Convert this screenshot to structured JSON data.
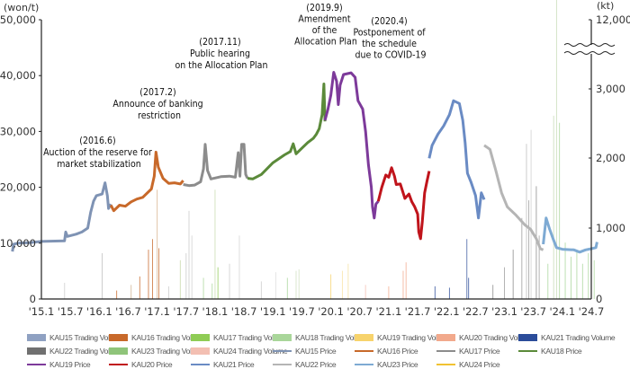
{
  "chart_data": {
    "type": "line",
    "title": "",
    "left_axis": {
      "unit_label": "(won/t)",
      "ticks": [
        "50,000",
        "40,000",
        "30,000",
        "20,000",
        "10,000",
        "0"
      ],
      "range": [
        0,
        50000
      ]
    },
    "right_axis": {
      "unit_label": "(kt)",
      "ticks": [
        "12,000",
        "3,000",
        "2,000",
        "1,000",
        "0"
      ],
      "range": [
        0,
        4000
      ],
      "break_between": [
        3000,
        12000
      ]
    },
    "x_ticks": [
      "'15.1",
      "'15.7",
      "'16.1",
      "'16.7",
      "'17.1",
      "'17.7",
      "'18.1",
      "'18.7",
      "'19.1",
      "'19.7",
      "'20.1",
      "'20.7",
      "'21.1",
      "'21.7",
      "'22.1",
      "'22.7",
      "'23.1",
      "'23.7",
      "'24.1",
      "'24.7"
    ],
    "annotations": [
      {
        "lines": [
          "(2016.6)",
          "Auction of the reserve for",
          "market stabilization"
        ]
      },
      {
        "lines": [
          "(2017.2)",
          "Announce of banking",
          "restriction"
        ]
      },
      {
        "lines": [
          "(2017.11)",
          "Public hearing",
          "on the Allocation Plan"
        ]
      },
      {
        "lines": [
          "(2019.9)",
          "Amendment",
          "of the",
          "Allocation Plan"
        ]
      },
      {
        "lines": [
          "(2020.4)",
          "Postponement of",
          "the schedule",
          "due to COVID-19"
        ]
      }
    ],
    "price_series": [
      {
        "name": "KAU15 Price",
        "color": "#7f93b4",
        "points": [
          [
            2015.0,
            8500
          ],
          [
            2015.02,
            9800
          ],
          [
            2015.1,
            10000
          ],
          [
            2015.3,
            10100
          ],
          [
            2015.5,
            10300
          ],
          [
            2015.9,
            10400
          ],
          [
            2015.92,
            12000
          ],
          [
            2015.95,
            11200
          ],
          [
            2016.1,
            11600
          ],
          [
            2016.2,
            12000
          ],
          [
            2016.3,
            12700
          ],
          [
            2016.35,
            15500
          ],
          [
            2016.4,
            17500
          ],
          [
            2016.45,
            18500
          ],
          [
            2016.55,
            18800
          ],
          [
            2016.6,
            20800
          ],
          [
            2016.64,
            18500
          ],
          [
            2016.66,
            16200
          ],
          [
            2016.7,
            17000
          ]
        ]
      },
      {
        "name": "KAU16 Price",
        "color": "#c8692a",
        "points": [
          [
            2016.7,
            16800
          ],
          [
            2016.75,
            15800
          ],
          [
            2016.85,
            16800
          ],
          [
            2016.95,
            16600
          ],
          [
            2017.05,
            17400
          ],
          [
            2017.15,
            17900
          ],
          [
            2017.25,
            18200
          ],
          [
            2017.4,
            19700
          ],
          [
            2017.45,
            22000
          ],
          [
            2017.48,
            26300
          ],
          [
            2017.52,
            23600
          ],
          [
            2017.6,
            21600
          ],
          [
            2017.7,
            20700
          ],
          [
            2017.8,
            20800
          ],
          [
            2017.9,
            20600
          ],
          [
            2017.95,
            21200
          ]
        ]
      },
      {
        "name": "KAU17 Price",
        "color": "#8c8c8c",
        "points": [
          [
            2017.95,
            20500
          ],
          [
            2018.05,
            20300
          ],
          [
            2018.15,
            20400
          ],
          [
            2018.25,
            21000
          ],
          [
            2018.3,
            23300
          ],
          [
            2018.33,
            27700
          ],
          [
            2018.37,
            23000
          ],
          [
            2018.43,
            21500
          ],
          [
            2018.6,
            21900
          ],
          [
            2018.75,
            22000
          ],
          [
            2018.85,
            21800
          ],
          [
            2018.9,
            26200
          ],
          [
            2018.93,
            22000
          ],
          [
            2018.96,
            27700
          ],
          [
            2019.0,
            27700
          ],
          [
            2019.03,
            22300
          ],
          [
            2019.06,
            21600
          ]
        ]
      },
      {
        "name": "KAU18 Price",
        "color": "#5b8a3a",
        "points": [
          [
            2019.06,
            21600
          ],
          [
            2019.15,
            21500
          ],
          [
            2019.3,
            22300
          ],
          [
            2019.5,
            24400
          ],
          [
            2019.7,
            25800
          ],
          [
            2019.8,
            26400
          ],
          [
            2019.85,
            27800
          ],
          [
            2019.9,
            26000
          ],
          [
            2020.0,
            27000
          ],
          [
            2020.1,
            28000
          ],
          [
            2020.2,
            28800
          ],
          [
            2020.25,
            29500
          ],
          [
            2020.3,
            30500
          ],
          [
            2020.35,
            33000
          ],
          [
            2020.38,
            38500
          ],
          [
            2020.4,
            31800
          ]
        ]
      },
      {
        "name": "KAU19 Price",
        "color": "#7d3a9a",
        "points": [
          [
            2020.4,
            32000
          ],
          [
            2020.45,
            34000
          ],
          [
            2020.5,
            36500
          ],
          [
            2020.55,
            40600
          ],
          [
            2020.6,
            39000
          ],
          [
            2020.63,
            34800
          ],
          [
            2020.66,
            38300
          ],
          [
            2020.72,
            40200
          ],
          [
            2020.85,
            40500
          ],
          [
            2020.92,
            39700
          ],
          [
            2020.97,
            35500
          ],
          [
            2021.05,
            34000
          ],
          [
            2021.1,
            30000
          ],
          [
            2021.15,
            24000
          ],
          [
            2021.2,
            20000
          ],
          [
            2021.22,
            16500
          ],
          [
            2021.25,
            14500
          ],
          [
            2021.28,
            17000
          ],
          [
            2021.32,
            17500
          ]
        ]
      },
      {
        "name": "KAU20 Price",
        "color": "#c0141b",
        "points": [
          [
            2021.32,
            17500
          ],
          [
            2021.38,
            20000
          ],
          [
            2021.45,
            22200
          ],
          [
            2021.5,
            21800
          ],
          [
            2021.55,
            23500
          ],
          [
            2021.6,
            22000
          ],
          [
            2021.63,
            20500
          ],
          [
            2021.7,
            20600
          ],
          [
            2021.78,
            18000
          ],
          [
            2021.85,
            18800
          ],
          [
            2021.9,
            17400
          ],
          [
            2021.95,
            16500
          ],
          [
            2022.0,
            15200
          ],
          [
            2022.02,
            12000
          ],
          [
            2022.05,
            10800
          ],
          [
            2022.08,
            13800
          ],
          [
            2022.12,
            19000
          ],
          [
            2022.16,
            21000
          ],
          [
            2022.2,
            22900
          ]
        ]
      },
      {
        "name": "KAU21 Price",
        "color": "#6a8bc4",
        "points": [
          [
            2022.2,
            25200
          ],
          [
            2022.25,
            27500
          ],
          [
            2022.35,
            29500
          ],
          [
            2022.45,
            31000
          ],
          [
            2022.55,
            33000
          ],
          [
            2022.62,
            35500
          ],
          [
            2022.72,
            35000
          ],
          [
            2022.78,
            32000
          ],
          [
            2022.82,
            28000
          ],
          [
            2022.86,
            22500
          ],
          [
            2022.92,
            21000
          ],
          [
            2023.0,
            18500
          ],
          [
            2023.05,
            14500
          ],
          [
            2023.1,
            19000
          ],
          [
            2023.15,
            17800
          ]
        ]
      },
      {
        "name": "KAU22 Price",
        "color": "#b5b5b5",
        "points": [
          [
            2023.15,
            27500
          ],
          [
            2023.25,
            26800
          ],
          [
            2023.35,
            23000
          ],
          [
            2023.45,
            19000
          ],
          [
            2023.55,
            16500
          ],
          [
            2023.7,
            15000
          ],
          [
            2023.85,
            13300
          ],
          [
            2023.95,
            12500
          ],
          [
            2024.05,
            10800
          ],
          [
            2024.12,
            9000
          ],
          [
            2024.17,
            8800
          ]
        ]
      },
      {
        "name": "KAU23 Price",
        "color": "#7eaad3",
        "points": [
          [
            2024.17,
            9800
          ],
          [
            2024.22,
            14500
          ],
          [
            2024.28,
            12500
          ],
          [
            2024.35,
            10500
          ],
          [
            2024.4,
            9200
          ],
          [
            2024.5,
            8900
          ],
          [
            2024.7,
            8800
          ],
          [
            2024.8,
            8400
          ],
          [
            2024.9,
            8800
          ],
          [
            2025.0,
            9000
          ],
          [
            2025.08,
            9200
          ],
          [
            2025.1,
            10200
          ]
        ]
      }
    ],
    "volume_series": [
      {
        "name": "KAU15 Trading Volume",
        "color": "#8fa1c2"
      },
      {
        "name": "KAU16 Trading Volume",
        "color": "#c8692a"
      },
      {
        "name": "KAU17 Trading Volume",
        "color": "#8fcc55"
      },
      {
        "name": "KAU18 Trading Volume",
        "color": "#a9d69a"
      },
      {
        "name": "KAU19 Trading Volume",
        "color": "#f7d36c"
      },
      {
        "name": "KAU20 Trading Volume",
        "color": "#f2a98c"
      },
      {
        "name": "KAU21 Trading Volume",
        "color": "#2b4c9a"
      },
      {
        "name": "KAU22 Trading Volume",
        "color": "#707070"
      },
      {
        "name": "KAU23 Trading Volume",
        "color": "#8fc47a"
      },
      {
        "name": "KAU24 Trading Volume",
        "color": "#f3bfb2"
      }
    ],
    "volume_bars": [
      [
        2015.9,
        230,
        "#cccccc"
      ],
      [
        2016.55,
        650,
        "#bbbbbb"
      ],
      [
        2016.8,
        120,
        "#c8692a"
      ],
      [
        2017.05,
        200,
        "#d0b090"
      ],
      [
        2017.2,
        320,
        "#c8692a"
      ],
      [
        2017.35,
        700,
        "#c8692a"
      ],
      [
        2017.42,
        850,
        "#c8692a"
      ],
      [
        2017.5,
        1550,
        "#d7b08a"
      ],
      [
        2017.53,
        720,
        "#c8692a"
      ],
      [
        2017.7,
        180,
        "#ccc"
      ],
      [
        2017.9,
        550,
        "#c8d9a8"
      ],
      [
        2018.0,
        650,
        "#c8c8c8"
      ],
      [
        2018.05,
        1250,
        "#c8c8c8"
      ],
      [
        2018.1,
        900,
        "#cfcfcf"
      ],
      [
        2018.3,
        300,
        "#a9d69a"
      ],
      [
        2018.45,
        220,
        "#a9d69a"
      ],
      [
        2018.5,
        1550,
        "#c9dcae"
      ],
      [
        2018.55,
        450,
        "#8fcc55"
      ],
      [
        2018.75,
        500,
        "#cccccc"
      ],
      [
        2018.92,
        900,
        "#d6d6d6"
      ],
      [
        2019.3,
        250,
        "#cccccc"
      ],
      [
        2019.55,
        380,
        "#dddddd"
      ],
      [
        2019.75,
        300,
        "#a9d69a"
      ],
      [
        2019.9,
        400,
        "#cfe0c0"
      ],
      [
        2019.95,
        420,
        "#cfe0c0"
      ],
      [
        2020.5,
        350,
        "#f7d36c"
      ],
      [
        2020.7,
        400,
        "#f7e2a0"
      ],
      [
        2020.8,
        500,
        "#f7e2a0"
      ],
      [
        2021.1,
        200,
        "#f3bfb2"
      ],
      [
        2021.5,
        180,
        "#f2a98c"
      ],
      [
        2021.75,
        400,
        "#f2a98c"
      ],
      [
        2021.8,
        520,
        "#f2a98c"
      ],
      [
        2022.3,
        180,
        "#2b4c9a"
      ],
      [
        2022.55,
        160,
        "#2b4c9a"
      ],
      [
        2022.85,
        850,
        "#3d5aa0"
      ],
      [
        2022.88,
        300,
        "#2b4c9a"
      ],
      [
        2023.3,
        200,
        "#888"
      ],
      [
        2023.5,
        450,
        "#999"
      ],
      [
        2023.65,
        700,
        "#888"
      ],
      [
        2023.8,
        1150,
        "#999"
      ],
      [
        2023.88,
        2200,
        "#bbbbbb"
      ],
      [
        2023.92,
        1400,
        "#999"
      ],
      [
        2023.96,
        2400,
        "#cfcfcf"
      ],
      [
        2024.05,
        1600,
        "#888"
      ],
      [
        2024.1,
        900,
        "#999"
      ],
      [
        2024.25,
        500,
        "#a9d69a"
      ],
      [
        2024.35,
        2600,
        "#c5dbb5"
      ],
      [
        2024.4,
        5000,
        "#c5dbb5"
      ],
      [
        2024.45,
        2500,
        "#a9d69a"
      ],
      [
        2024.55,
        800,
        "#a9d69a"
      ],
      [
        2024.65,
        600,
        "#a9d69a"
      ],
      [
        2024.75,
        700,
        "#a9d69a"
      ],
      [
        2024.85,
        500,
        "#a9d69a"
      ],
      [
        2024.95,
        650,
        "#a9d69a"
      ],
      [
        2025.05,
        550,
        "#a9d69a"
      ]
    ]
  },
  "legend": {
    "rows": [
      [
        {
          "label": "KAU15 Trading Volume",
          "type": "box",
          "color": "#8fa1c2"
        },
        {
          "label": "KAU16 Trading Volume",
          "type": "box",
          "color": "#c8692a"
        },
        {
          "label": "KAU17 Trading Volume",
          "type": "box",
          "color": "#8fcc55"
        },
        {
          "label": "KAU18 Trading Volume",
          "type": "box",
          "color": "#a9d69a"
        },
        {
          "label": "KAU19 Trading Volume",
          "type": "box",
          "color": "#f7d36c"
        },
        {
          "label": "KAU20 Trading Volume",
          "type": "box",
          "color": "#f2a98c"
        },
        {
          "label": "KAU21 Trading Volume",
          "type": "box",
          "color": "#2b4c9a"
        }
      ],
      [
        {
          "label": "KAU22 Trading Volume",
          "type": "box",
          "color": "#707070"
        },
        {
          "label": "KAU23 Trading Volume",
          "type": "box",
          "color": "#8fc47a"
        },
        {
          "label": "KAU24 Trading Volume",
          "type": "box",
          "color": "#f3bfb2"
        },
        {
          "label": "KAU15 Price",
          "type": "line",
          "color": "#7f93b4"
        },
        {
          "label": "KAU16 Price",
          "type": "line",
          "color": "#c8692a"
        },
        {
          "label": "KAU17 Price",
          "type": "line",
          "color": "#8c8c8c"
        },
        {
          "label": "KAU18 Price",
          "type": "line",
          "color": "#5b8a3a"
        }
      ],
      [
        {
          "label": "KAU19 Price",
          "type": "line",
          "color": "#7d3a9a"
        },
        {
          "label": "KAU20 Price",
          "type": "line",
          "color": "#c0141b"
        },
        {
          "label": "KAU21 Price",
          "type": "line",
          "color": "#6a8bc4"
        },
        {
          "label": "KAU22 Price",
          "type": "line",
          "color": "#b5b5b5"
        },
        {
          "label": "KAU23 Price",
          "type": "line",
          "color": "#7eaad3"
        },
        {
          "label": "KAU24 Price",
          "type": "line",
          "color": "#f1c232"
        }
      ]
    ]
  }
}
